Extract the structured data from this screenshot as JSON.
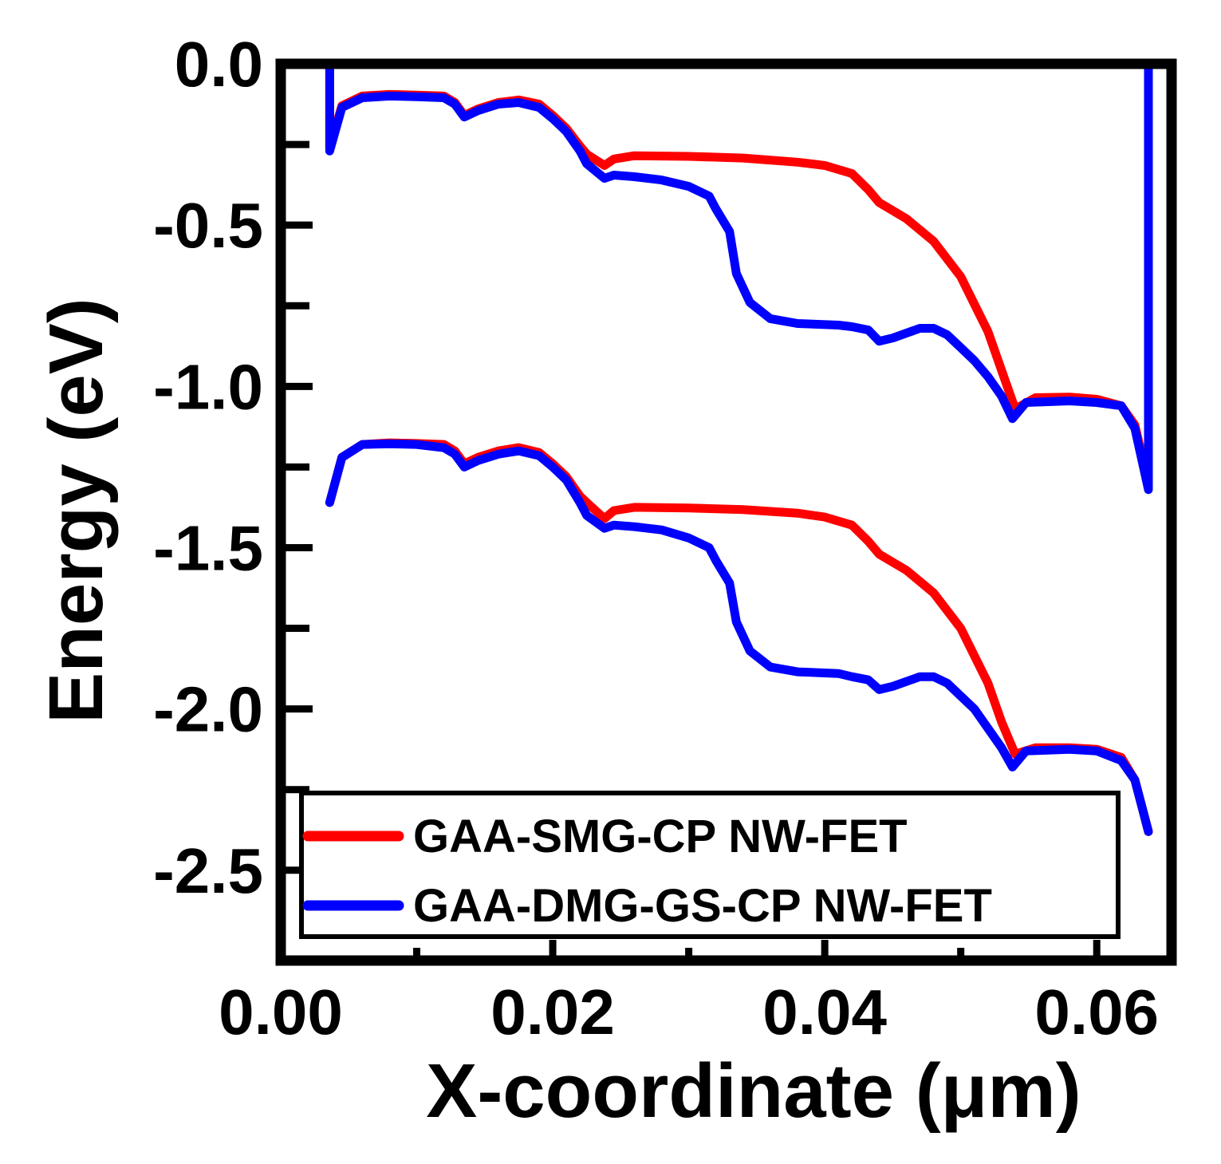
{
  "chart_data": {
    "type": "line",
    "xlabel": "X-coordinate (μm)",
    "ylabel": "Energy (eV)",
    "xlim": [
      0.0,
      0.0655
    ],
    "ylim": [
      -2.78,
      0.0
    ],
    "x_major_ticks": [
      0.0,
      0.02,
      0.04,
      0.06
    ],
    "x_tick_labels": [
      "0.00",
      "0.02",
      "0.04",
      "0.06"
    ],
    "x_minor_ticks": [
      0.01,
      0.03,
      0.05
    ],
    "y_major_ticks": [
      0.0,
      -0.5,
      -1.0,
      -1.5,
      -2.0,
      -2.5
    ],
    "y_tick_labels": [
      "0.0",
      "-0.5",
      "-1.0",
      "-1.5",
      "-2.0",
      "-2.5"
    ],
    "y_minor_ticks": [
      -0.25,
      -0.75,
      -1.25,
      -1.75,
      -2.25
    ],
    "legend_position": "bottom-center",
    "series": [
      {
        "name": "GAA-SMG-CP NW-FET",
        "color": "#ff0000",
        "band": "conduction",
        "points": [
          [
            0.0025,
            0.0
          ],
          [
            0.0036,
            0.0
          ],
          [
            0.0036,
            -0.26
          ],
          [
            0.0045,
            -0.13
          ],
          [
            0.006,
            -0.1
          ],
          [
            0.008,
            -0.095
          ],
          [
            0.01,
            -0.097
          ],
          [
            0.012,
            -0.1
          ],
          [
            0.0128,
            -0.12
          ],
          [
            0.0135,
            -0.16
          ],
          [
            0.0145,
            -0.14
          ],
          [
            0.016,
            -0.12
          ],
          [
            0.0175,
            -0.112
          ],
          [
            0.019,
            -0.125
          ],
          [
            0.02,
            -0.16
          ],
          [
            0.021,
            -0.2
          ],
          [
            0.022,
            -0.255
          ],
          [
            0.0225,
            -0.28
          ],
          [
            0.0238,
            -0.315
          ],
          [
            0.0245,
            -0.295
          ],
          [
            0.026,
            -0.285
          ],
          [
            0.03,
            -0.287
          ],
          [
            0.034,
            -0.292
          ],
          [
            0.038,
            -0.305
          ],
          [
            0.04,
            -0.315
          ],
          [
            0.042,
            -0.34
          ],
          [
            0.0432,
            -0.39
          ],
          [
            0.044,
            -0.43
          ],
          [
            0.046,
            -0.48
          ],
          [
            0.048,
            -0.55
          ],
          [
            0.05,
            -0.66
          ],
          [
            0.052,
            -0.83
          ],
          [
            0.053,
            -0.95
          ],
          [
            0.054,
            -1.07
          ],
          [
            0.0555,
            -1.035
          ],
          [
            0.058,
            -1.033
          ],
          [
            0.06,
            -1.04
          ],
          [
            0.0618,
            -1.06
          ],
          [
            0.0628,
            -1.12
          ],
          [
            0.0638,
            -1.3
          ],
          [
            0.0638,
            0.0
          ],
          [
            0.0655,
            0.0
          ]
        ]
      },
      {
        "name": "GAA-SMG-CP NW-FET",
        "color": "#ff0000",
        "band": "valence",
        "points": [
          [
            0.0036,
            -1.36
          ],
          [
            0.0045,
            -1.22
          ],
          [
            0.006,
            -1.18
          ],
          [
            0.008,
            -1.175
          ],
          [
            0.01,
            -1.177
          ],
          [
            0.012,
            -1.18
          ],
          [
            0.0128,
            -1.2
          ],
          [
            0.0135,
            -1.24
          ],
          [
            0.0145,
            -1.22
          ],
          [
            0.016,
            -1.2
          ],
          [
            0.0175,
            -1.19
          ],
          [
            0.019,
            -1.205
          ],
          [
            0.02,
            -1.24
          ],
          [
            0.021,
            -1.28
          ],
          [
            0.022,
            -1.34
          ],
          [
            0.0225,
            -1.36
          ],
          [
            0.0238,
            -1.41
          ],
          [
            0.0245,
            -1.385
          ],
          [
            0.026,
            -1.375
          ],
          [
            0.03,
            -1.377
          ],
          [
            0.034,
            -1.382
          ],
          [
            0.038,
            -1.393
          ],
          [
            0.04,
            -1.405
          ],
          [
            0.042,
            -1.43
          ],
          [
            0.0432,
            -1.48
          ],
          [
            0.044,
            -1.52
          ],
          [
            0.046,
            -1.57
          ],
          [
            0.048,
            -1.64
          ],
          [
            0.05,
            -1.75
          ],
          [
            0.052,
            -1.92
          ],
          [
            0.053,
            -2.04
          ],
          [
            0.054,
            -2.14
          ],
          [
            0.0555,
            -2.12
          ],
          [
            0.058,
            -2.12
          ],
          [
            0.06,
            -2.125
          ],
          [
            0.0618,
            -2.15
          ],
          [
            0.0628,
            -2.22
          ],
          [
            0.0638,
            -2.38
          ]
        ]
      },
      {
        "name": "GAA-DMG-GS-CP NW-FET",
        "color": "#0000ff",
        "band": "conduction",
        "points": [
          [
            0.0025,
            0.0
          ],
          [
            0.0036,
            0.0
          ],
          [
            0.0036,
            -0.27
          ],
          [
            0.0045,
            -0.135
          ],
          [
            0.006,
            -0.105
          ],
          [
            0.008,
            -0.1
          ],
          [
            0.01,
            -0.102
          ],
          [
            0.012,
            -0.105
          ],
          [
            0.0128,
            -0.125
          ],
          [
            0.0135,
            -0.165
          ],
          [
            0.0145,
            -0.145
          ],
          [
            0.016,
            -0.125
          ],
          [
            0.0175,
            -0.12
          ],
          [
            0.019,
            -0.135
          ],
          [
            0.02,
            -0.17
          ],
          [
            0.021,
            -0.21
          ],
          [
            0.022,
            -0.27
          ],
          [
            0.0225,
            -0.31
          ],
          [
            0.0238,
            -0.355
          ],
          [
            0.0245,
            -0.345
          ],
          [
            0.026,
            -0.35
          ],
          [
            0.028,
            -0.36
          ],
          [
            0.03,
            -0.38
          ],
          [
            0.0315,
            -0.41
          ],
          [
            0.032,
            -0.45
          ],
          [
            0.033,
            -0.52
          ],
          [
            0.0335,
            -0.65
          ],
          [
            0.0345,
            -0.74
          ],
          [
            0.036,
            -0.79
          ],
          [
            0.038,
            -0.805
          ],
          [
            0.041,
            -0.81
          ],
          [
            0.042,
            -0.815
          ],
          [
            0.0432,
            -0.825
          ],
          [
            0.044,
            -0.86
          ],
          [
            0.045,
            -0.85
          ],
          [
            0.047,
            -0.82
          ],
          [
            0.048,
            -0.82
          ],
          [
            0.049,
            -0.84
          ],
          [
            0.05,
            -0.88
          ],
          [
            0.051,
            -0.92
          ],
          [
            0.052,
            -0.97
          ],
          [
            0.053,
            -1.03
          ],
          [
            0.0538,
            -1.1
          ],
          [
            0.0548,
            -1.05
          ],
          [
            0.058,
            -1.045
          ],
          [
            0.06,
            -1.05
          ],
          [
            0.0618,
            -1.06
          ],
          [
            0.0628,
            -1.13
          ],
          [
            0.0638,
            -1.32
          ],
          [
            0.0638,
            0.0
          ],
          [
            0.0655,
            0.0
          ]
        ]
      },
      {
        "name": "GAA-DMG-GS-CP NW-FET",
        "color": "#0000ff",
        "band": "valence",
        "points": [
          [
            0.0036,
            -1.36
          ],
          [
            0.0045,
            -1.22
          ],
          [
            0.006,
            -1.18
          ],
          [
            0.008,
            -1.178
          ],
          [
            0.01,
            -1.18
          ],
          [
            0.012,
            -1.19
          ],
          [
            0.0128,
            -1.21
          ],
          [
            0.0135,
            -1.25
          ],
          [
            0.0145,
            -1.23
          ],
          [
            0.016,
            -1.21
          ],
          [
            0.0175,
            -1.2
          ],
          [
            0.019,
            -1.215
          ],
          [
            0.02,
            -1.25
          ],
          [
            0.021,
            -1.29
          ],
          [
            0.022,
            -1.36
          ],
          [
            0.0225,
            -1.4
          ],
          [
            0.0238,
            -1.44
          ],
          [
            0.0245,
            -1.43
          ],
          [
            0.026,
            -1.435
          ],
          [
            0.028,
            -1.445
          ],
          [
            0.03,
            -1.47
          ],
          [
            0.0315,
            -1.5
          ],
          [
            0.032,
            -1.54
          ],
          [
            0.033,
            -1.61
          ],
          [
            0.0335,
            -1.73
          ],
          [
            0.0345,
            -1.82
          ],
          [
            0.036,
            -1.87
          ],
          [
            0.038,
            -1.885
          ],
          [
            0.041,
            -1.89
          ],
          [
            0.042,
            -1.9
          ],
          [
            0.0432,
            -1.91
          ],
          [
            0.044,
            -1.94
          ],
          [
            0.045,
            -1.93
          ],
          [
            0.047,
            -1.9
          ],
          [
            0.048,
            -1.9
          ],
          [
            0.049,
            -1.92
          ],
          [
            0.05,
            -1.96
          ],
          [
            0.051,
            -2.0
          ],
          [
            0.052,
            -2.06
          ],
          [
            0.053,
            -2.12
          ],
          [
            0.0538,
            -2.18
          ],
          [
            0.0548,
            -2.13
          ],
          [
            0.058,
            -2.125
          ],
          [
            0.06,
            -2.13
          ],
          [
            0.0618,
            -2.16
          ],
          [
            0.0628,
            -2.22
          ],
          [
            0.0638,
            -2.38
          ]
        ]
      }
    ],
    "legend": [
      {
        "label": "GAA-SMG-CP NW-FET",
        "color": "#ff0000"
      },
      {
        "label": "GAA-DMG-GS-CP NW-FET",
        "color": "#0000ff"
      }
    ]
  }
}
